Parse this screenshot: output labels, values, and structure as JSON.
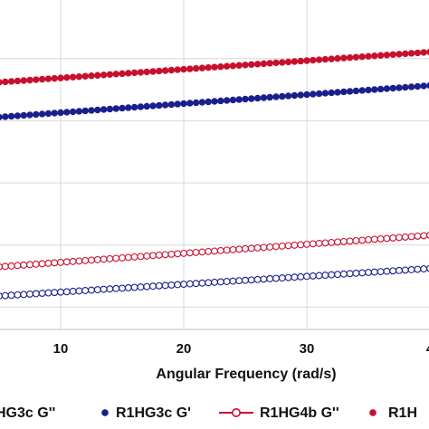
{
  "chart_data": {
    "type": "scatter",
    "title": "",
    "xlabel": "Angular Frequency (rad/s)",
    "ylabel": "",
    "x_ticks": [
      "10",
      "20",
      "30",
      "4"
    ],
    "xlim": [
      1,
      41.5
    ],
    "ylim": [
      0,
      10
    ],
    "grid": true,
    "legend_position": "bottom",
    "colors": {
      "blue": "#1a1f8c",
      "red": "#c8102e",
      "grid": "#d9d9d9"
    },
    "legend": [
      {
        "label": "HG3c G''",
        "color": "#1a1f8c",
        "marker": "open-circle-line"
      },
      {
        "label": "R1HG3c G'",
        "color": "#1a1f8c",
        "marker": "filled-circle"
      },
      {
        "label": "R1HG4b G''",
        "color": "#c8102e",
        "marker": "open-circle-line"
      },
      {
        "label": "R1H",
        "color": "#c8102e",
        "marker": "filled-circle"
      }
    ],
    "series": [
      {
        "label_ref": 1,
        "color": "#1a1f8c",
        "filled": true,
        "y_start": 6.55,
        "y_end": 7.7
      },
      {
        "label_ref": 3,
        "color": "#c8102e",
        "filled": true,
        "y_start": 7.65,
        "y_end": 8.75
      },
      {
        "label_ref": 0,
        "color": "#1a1f8c",
        "filled": false,
        "y_start": 0.95,
        "y_end": 1.95
      },
      {
        "label_ref": 2,
        "color": "#c8102e",
        "filled": false,
        "y_start": 1.85,
        "y_end": 3.0
      }
    ],
    "points_per_series": 82
  }
}
